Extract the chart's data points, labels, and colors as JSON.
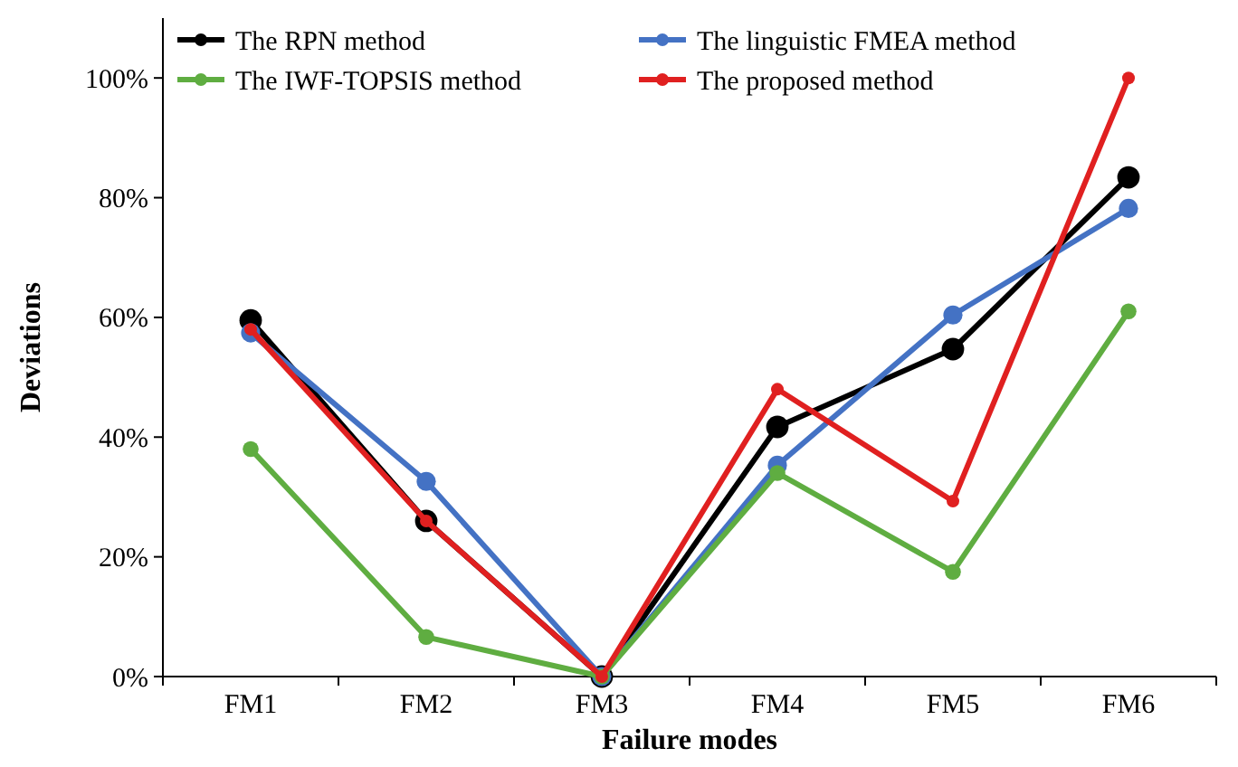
{
  "chart_data": {
    "type": "line",
    "xlabel": "Failure modes",
    "ylabel": "Deviations",
    "categories": [
      "FM1",
      "FM2",
      "FM3",
      "FM4",
      "FM5",
      "FM6"
    ],
    "series": [
      {
        "name": "The RPN method",
        "color": "#000000",
        "values": [
          59.5,
          26,
          0,
          41.7,
          54.7,
          83.4
        ]
      },
      {
        "name": "The linguistic FMEA method",
        "color": "#4472c4",
        "values": [
          57.4,
          32.6,
          0,
          35.3,
          60.4,
          78.2
        ]
      },
      {
        "name": "The IWF-TOPSIS method",
        "color": "#5fad41",
        "values": [
          38,
          6.6,
          0,
          34,
          17.5,
          61
        ]
      },
      {
        "name": "The proposed method",
        "color": "#e02020",
        "values": [
          58,
          26,
          0,
          48,
          29.3,
          100
        ]
      }
    ],
    "ylim": [
      0,
      110
    ],
    "yticks": [
      {
        "value": 0,
        "label": "0%"
      },
      {
        "value": 20,
        "label": "20%"
      },
      {
        "value": 40,
        "label": "40%"
      },
      {
        "value": 60,
        "label": "60%"
      },
      {
        "value": 80,
        "label": "80%"
      },
      {
        "value": 100,
        "label": "100%"
      }
    ],
    "grid": false,
    "legend": "top left",
    "marker": "circle",
    "line_style": "solid"
  }
}
